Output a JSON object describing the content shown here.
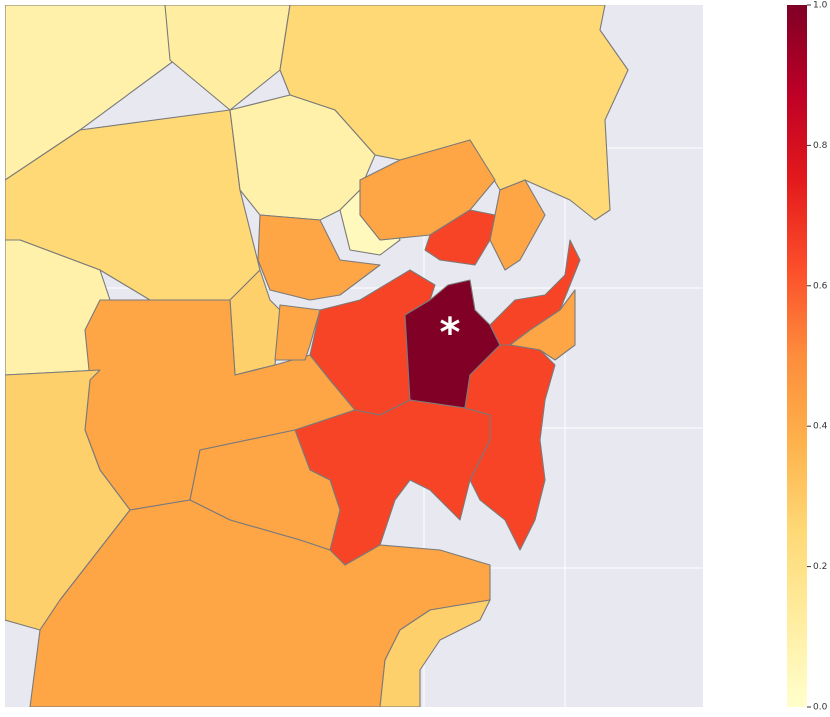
{
  "map": {
    "marker": "*",
    "regions": [
      {
        "value": 0.1
      },
      {
        "value": 0.12
      },
      {
        "value": 0.25
      },
      {
        "value": 0.25
      },
      {
        "value": 0.1
      },
      {
        "value": 0.04
      },
      {
        "value": 0.42
      },
      {
        "value": 0.42
      },
      {
        "value": 0.65
      },
      {
        "value": 0.42
      },
      {
        "value": 0.28
      },
      {
        "value": 0.1
      },
      {
        "value": 0.42
      },
      {
        "value": 0.28
      },
      {
        "value": 0.42
      },
      {
        "value": 0.65
      },
      {
        "value": 1.0
      },
      {
        "value": 0.65
      },
      {
        "value": 0.42
      },
      {
        "value": 0.65
      },
      {
        "value": 0.65
      },
      {
        "value": 0.42
      },
      {
        "value": 0.42
      },
      {
        "value": 0.28
      }
    ],
    "colorbar": {
      "lim": [
        0,
        1
      ],
      "ticks": [
        {
          "value": 0,
          "label": "0.0"
        },
        {
          "value": 0.2,
          "label": "0.2"
        },
        {
          "value": 0.4,
          "label": "0.4"
        },
        {
          "value": 0.6,
          "label": "0.6"
        },
        {
          "value": 0.8,
          "label": "0.8"
        },
        {
          "value": 1,
          "label": "1.0"
        }
      ]
    }
  }
}
